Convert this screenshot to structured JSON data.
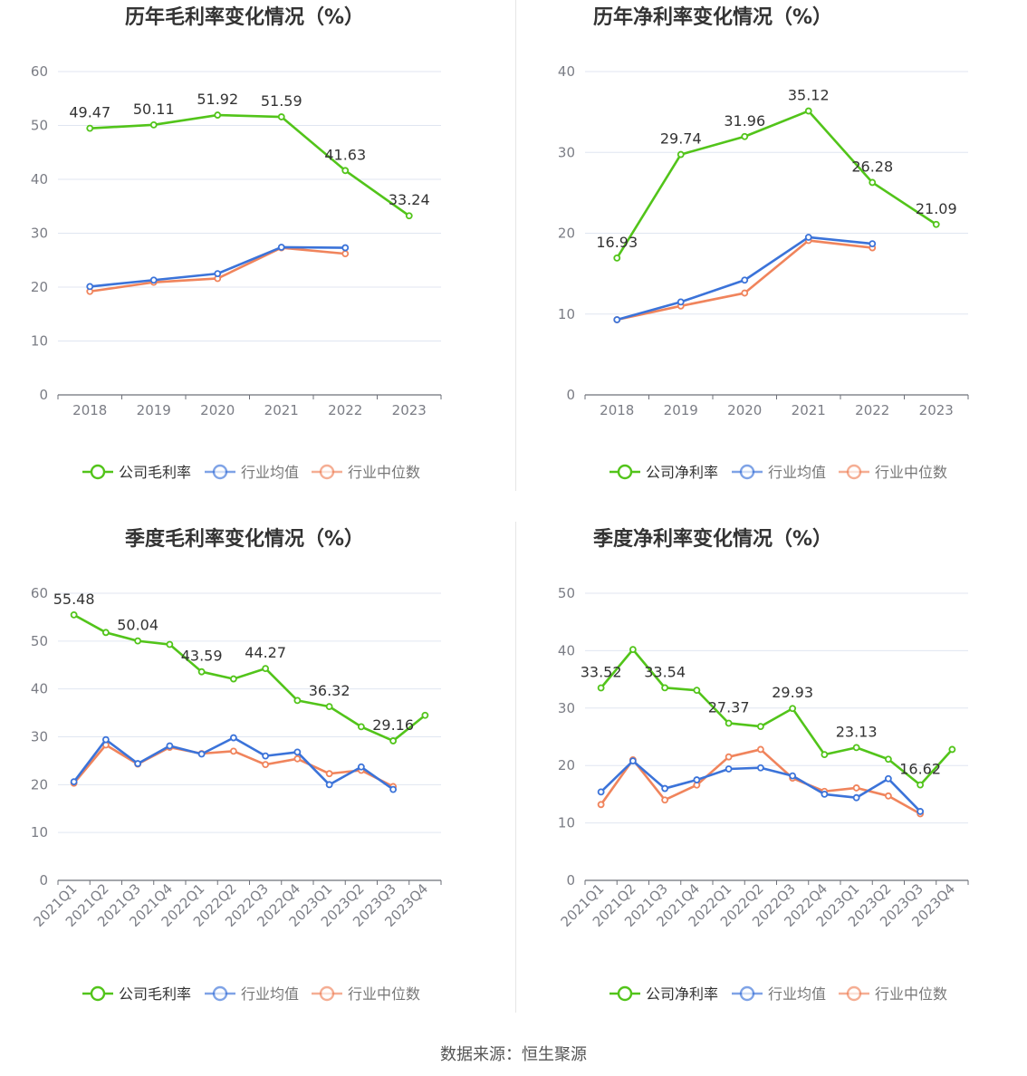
{
  "footer": {
    "source": "数据来源：恒生聚源"
  },
  "colors": {
    "company": "#52c41a",
    "avg": "#3b73d9",
    "median": "#f0845c",
    "axis": "#6e7079",
    "grid": "#e0e6f1",
    "label": "#333333",
    "tick": "#7b7d85"
  },
  "chart_data": [
    {
      "type": "line",
      "title": "历年毛利率变化情况（%）",
      "categories": [
        "2018",
        "2019",
        "2020",
        "2021",
        "2022",
        "2023"
      ],
      "ylim": [
        0,
        60
      ],
      "yticks": [
        0,
        10,
        20,
        30,
        40,
        50,
        60
      ],
      "series": [
        {
          "name": "公司毛利率",
          "values": [
            49.47,
            50.11,
            51.92,
            51.59,
            41.63,
            33.24
          ],
          "labels": [
            "49.47",
            "50.11",
            "51.92",
            "51.59",
            "41.63",
            "33.24"
          ]
        },
        {
          "name": "行业均值",
          "values": [
            20.1,
            21.3,
            22.5,
            27.4,
            27.3,
            null
          ]
        },
        {
          "name": "行业中位数",
          "values": [
            19.2,
            20.9,
            21.6,
            27.3,
            26.2,
            null
          ]
        }
      ],
      "legend": [
        "公司毛利率",
        "行业均值",
        "行业中位数"
      ],
      "grid": true,
      "legend_position": "bottom"
    },
    {
      "type": "line",
      "title": "历年净利率变化情况（%）",
      "categories": [
        "2018",
        "2019",
        "2020",
        "2021",
        "2022",
        "2023"
      ],
      "ylim": [
        0,
        40
      ],
      "yticks": [
        0,
        10,
        20,
        30,
        40
      ],
      "series": [
        {
          "name": "公司净利率",
          "values": [
            16.93,
            29.74,
            31.96,
            35.12,
            26.28,
            21.09
          ],
          "labels": [
            "16.93",
            "29.74",
            "31.96",
            "35.12",
            "26.28",
            "21.09"
          ]
        },
        {
          "name": "行业均值",
          "values": [
            9.3,
            11.5,
            14.2,
            19.5,
            18.7,
            null
          ]
        },
        {
          "name": "行业中位数",
          "values": [
            9.3,
            11.0,
            12.6,
            19.1,
            18.2,
            null
          ]
        }
      ],
      "legend": [
        "公司净利率",
        "行业均值",
        "行业中位数"
      ],
      "grid": true,
      "legend_position": "bottom"
    },
    {
      "type": "line",
      "title": "季度毛利率变化情况（%）",
      "categories": [
        "2021Q1",
        "2021Q2",
        "2021Q3",
        "2021Q4",
        "2022Q1",
        "2022Q2",
        "2022Q3",
        "2022Q4",
        "2023Q1",
        "2023Q2",
        "2023Q3",
        "2023Q4"
      ],
      "ylim": [
        0,
        60
      ],
      "yticks": [
        0,
        10,
        20,
        30,
        40,
        50,
        60
      ],
      "series": [
        {
          "name": "公司毛利率",
          "values": [
            55.48,
            51.8,
            50.04,
            49.3,
            43.59,
            42.1,
            44.27,
            37.6,
            36.32,
            32.1,
            29.16,
            34.5
          ],
          "labels": [
            "55.48",
            "",
            "50.04",
            "",
            "43.59",
            "",
            "44.27",
            "",
            "36.32",
            "",
            "29.16",
            ""
          ]
        },
        {
          "name": "行业均值",
          "values": [
            20.6,
            29.4,
            24.4,
            28.1,
            26.4,
            29.8,
            26.0,
            26.8,
            20.0,
            23.7,
            19.0,
            null
          ]
        },
        {
          "name": "行业中位数",
          "values": [
            20.3,
            28.3,
            24.3,
            27.8,
            26.5,
            27.0,
            24.2,
            25.4,
            22.3,
            23.0,
            19.6,
            null
          ]
        }
      ],
      "legend": [
        "公司毛利率",
        "行业均值",
        "行业中位数"
      ],
      "grid": true,
      "legend_position": "bottom"
    },
    {
      "type": "line",
      "title": "季度净利率变化情况（%）",
      "categories": [
        "2021Q1",
        "2021Q2",
        "2021Q3",
        "2021Q4",
        "2022Q1",
        "2022Q2",
        "2022Q3",
        "2022Q4",
        "2023Q1",
        "2023Q2",
        "2023Q3",
        "2023Q4"
      ],
      "ylim": [
        0,
        50
      ],
      "yticks": [
        0,
        10,
        20,
        30,
        40,
        50
      ],
      "series": [
        {
          "name": "公司净利率",
          "values": [
            33.52,
            40.2,
            33.54,
            33.1,
            27.37,
            26.8,
            29.93,
            21.9,
            23.13,
            21.1,
            16.62,
            22.8
          ],
          "labels": [
            "33.52",
            "",
            "33.54",
            "",
            "27.37",
            "",
            "29.93",
            "",
            "23.13",
            "",
            "16.62",
            ""
          ]
        },
        {
          "name": "行业均值",
          "values": [
            15.4,
            20.8,
            16.0,
            17.5,
            19.4,
            19.6,
            18.2,
            15.0,
            14.4,
            17.7,
            12.0,
            null
          ]
        },
        {
          "name": "行业中位数",
          "values": [
            13.2,
            21.0,
            14.0,
            16.6,
            21.5,
            22.8,
            17.8,
            15.5,
            16.1,
            14.7,
            11.6,
            null
          ]
        }
      ],
      "legend": [
        "公司净利率",
        "行业均值",
        "行业中位数"
      ],
      "grid": true,
      "legend_position": "bottom"
    }
  ]
}
